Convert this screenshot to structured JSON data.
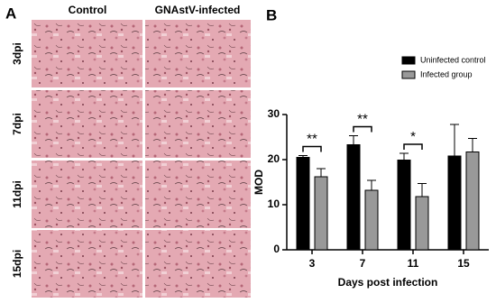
{
  "panel_a": {
    "label": "A",
    "columns": [
      "Control",
      "GNAstV-infected"
    ],
    "rows": [
      "3dpi",
      "7dpi",
      "11dpi",
      "15dpi"
    ]
  },
  "chart_data": {
    "type": "bar",
    "panel_label": "B",
    "ylabel": "MOD",
    "xlabel": "Days post infection",
    "categories": [
      "3",
      "7",
      "11",
      "15"
    ],
    "series": [
      {
        "name": "Uninfected control",
        "color": "#000000",
        "values": [
          20.5,
          23.3,
          19.9,
          20.8
        ],
        "errors": [
          0.4,
          2.0,
          1.5,
          7.0
        ]
      },
      {
        "name": "Infected group",
        "color": "#999999",
        "values": [
          16.2,
          13.2,
          11.8,
          21.7
        ],
        "errors": [
          1.8,
          2.2,
          2.9,
          3.0
        ]
      }
    ],
    "significance": [
      "**",
      "**",
      "*",
      null
    ],
    "ylim": [
      0,
      30
    ],
    "yticks": [
      0,
      10,
      20,
      30
    ],
    "legend": "top-right"
  }
}
